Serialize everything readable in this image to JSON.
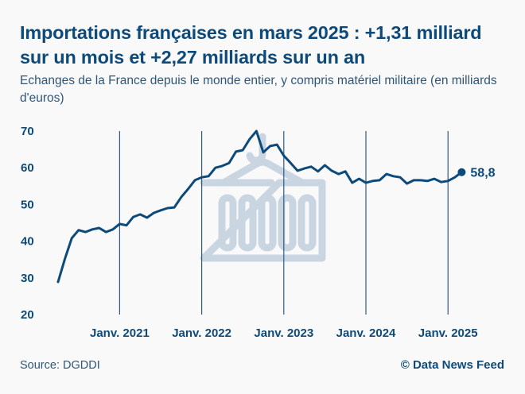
{
  "header": {
    "title": "Importations françaises en mars 2025 : +1,31 milliard sur un mois et +2,27 milliards sur un an",
    "subtitle": "Echanges de la France depuis le monde entier, y compris matériel militaire (en milliards d'euros)"
  },
  "footer": {
    "source": "Source: DGDDI",
    "credit": "© Data News Feed"
  },
  "colors": {
    "line": "#0d4a7a",
    "background": "#f9f9fa",
    "watermark": "#c9d6e1"
  },
  "watermark_icon": "shipping-container-icon",
  "chart_data": {
    "type": "line",
    "title": "Importations françaises en mars 2025 : +1,31 milliard sur un mois et +2,27 milliards sur un an",
    "xlabel": "",
    "ylabel": "milliards d'euros",
    "ylim": [
      20,
      70
    ],
    "yticks": [
      "70",
      "60",
      "50",
      "40",
      "30",
      "20"
    ],
    "ytick_values": [
      70,
      60,
      50,
      40,
      30,
      20
    ],
    "xticks": [
      {
        "label": "Janv. 2021",
        "index": 9
      },
      {
        "label": "Janv. 2022",
        "index": 21
      },
      {
        "label": "Janv. 2023",
        "index": 33
      },
      {
        "label": "Janv. 2024",
        "index": 45
      },
      {
        "label": "Janv. 2025",
        "index": 57
      }
    ],
    "grid": "vertical lines at January of each year",
    "legend": "none",
    "x_start": "2020-04",
    "x_end": "2025-03",
    "x": [
      "2020-04",
      "2020-05",
      "2020-06",
      "2020-07",
      "2020-08",
      "2020-09",
      "2020-10",
      "2020-11",
      "2020-12",
      "2021-01",
      "2021-02",
      "2021-03",
      "2021-04",
      "2021-05",
      "2021-06",
      "2021-07",
      "2021-08",
      "2021-09",
      "2021-10",
      "2021-11",
      "2021-12",
      "2022-01",
      "2022-02",
      "2022-03",
      "2022-04",
      "2022-05",
      "2022-06",
      "2022-07",
      "2022-08",
      "2022-09",
      "2022-10",
      "2022-11",
      "2022-12",
      "2023-01",
      "2023-02",
      "2023-03",
      "2023-04",
      "2023-05",
      "2023-06",
      "2023-07",
      "2023-08",
      "2023-09",
      "2023-10",
      "2023-11",
      "2023-12",
      "2024-01",
      "2024-02",
      "2024-03",
      "2024-04",
      "2024-05",
      "2024-06",
      "2024-07",
      "2024-08",
      "2024-09",
      "2024-10",
      "2024-11",
      "2024-12",
      "2025-01",
      "2025-02",
      "2025-03"
    ],
    "series": [
      {
        "name": "Importations",
        "values": [
          28.9,
          35.2,
          40.8,
          43.0,
          42.5,
          43.2,
          43.6,
          42.5,
          43.2,
          44.7,
          44.3,
          46.6,
          47.3,
          46.4,
          47.7,
          48.4,
          49.0,
          49.2,
          52.0,
          54.2,
          56.6,
          57.4,
          57.7,
          60.0,
          60.5,
          61.3,
          64.4,
          64.8,
          67.8,
          70.0,
          64.2,
          65.9,
          66.3,
          63.3,
          61.3,
          59.2,
          59.8,
          60.3,
          59.0,
          60.7,
          59.2,
          58.3,
          59.0,
          55.9,
          57.0,
          55.9,
          56.4,
          56.6,
          58.3,
          57.7,
          57.4,
          55.7,
          56.6,
          56.6,
          56.4,
          57.0,
          56.1,
          56.4,
          57.4,
          58.8
        ]
      }
    ],
    "annotations": [
      {
        "label": "58,8",
        "point": "2025-03",
        "value": 58.8
      }
    ]
  }
}
